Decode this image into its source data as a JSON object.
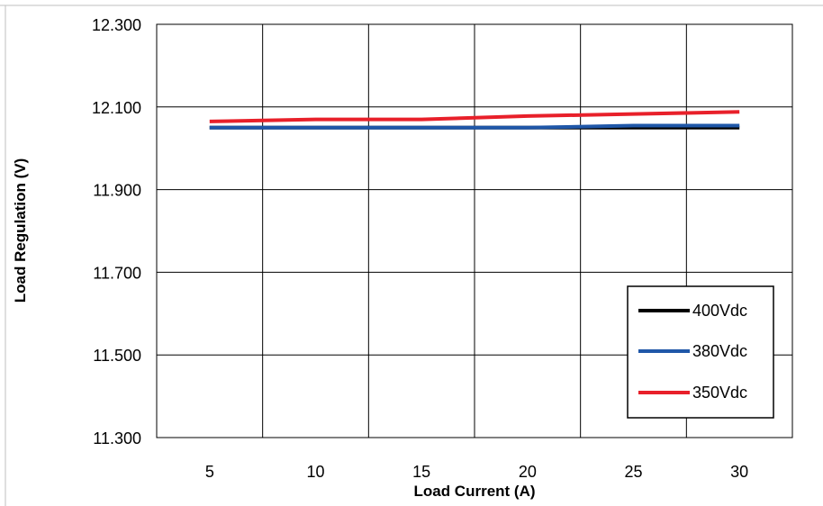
{
  "chart_data": {
    "type": "line",
    "title": "",
    "xlabel": "Load Current (A)",
    "ylabel": "Load Regulation  (V)",
    "x": [
      5,
      10,
      15,
      20,
      25,
      30
    ],
    "x_tick_labels": [
      "5",
      "10",
      "15",
      "20",
      "25",
      "30"
    ],
    "ylim": [
      11.3,
      12.3
    ],
    "y_ticks": [
      11.3,
      11.5,
      11.7,
      11.9,
      12.1,
      12.3
    ],
    "y_tick_labels": [
      "11.300",
      "11.500",
      "11.700",
      "11.900",
      "12.100",
      "12.300"
    ],
    "grid": true,
    "legend_position": "bottom-right",
    "series": [
      {
        "name": "400Vdc",
        "color": "#000000",
        "values": [
          12.05,
          12.05,
          12.05,
          12.05,
          12.05,
          12.05
        ]
      },
      {
        "name": "380Vdc",
        "color": "#1f57a8",
        "values": [
          12.05,
          12.05,
          12.05,
          12.05,
          12.055,
          12.055
        ]
      },
      {
        "name": "350Vdc",
        "color": "#e8202a",
        "values": [
          12.065,
          12.07,
          12.07,
          12.078,
          12.083,
          12.088
        ]
      }
    ]
  }
}
